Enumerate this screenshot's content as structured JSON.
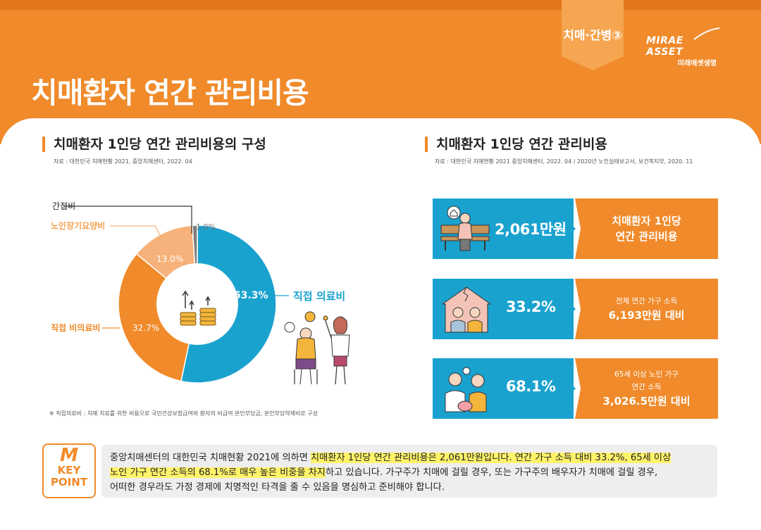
{
  "header": {
    "title": "치매환자 연간 관리비용",
    "tag": "치매·간병③",
    "logo_main": "MIRAE ASSET",
    "logo_sub": "미래에셋생명",
    "colors": {
      "primary": "#f08a2a",
      "blue": "#1aa2cf"
    }
  },
  "left": {
    "title": "치매환자 1인당 연간 관리비용의 구성",
    "source": "자료 : 대한민국 치매현황 2021, 중앙치매센터, 2022. 04",
    "footnote": "※ 직접의료비 : 치매 치료를 위한 비용으로 국민건강보험급여와 환자의 비급여 본인부담금, 본인부담약제비로 구성"
  },
  "chart_data": {
    "type": "pie",
    "title": "치매환자 1인당 연간 관리비용의 구성",
    "slices": [
      {
        "name": "직접 의료비",
        "value": 53.3,
        "label": "53.3%",
        "color": "#1aa2cf"
      },
      {
        "name": "직접 비의료비",
        "value": 32.7,
        "label": "32.7%",
        "color": "#f08a2a"
      },
      {
        "name": "노인장기요양비",
        "value": 13.0,
        "label": "13.0%",
        "color": "#f6b27a"
      },
      {
        "name": "간접비",
        "value": 1.0,
        "label": "1.0%",
        "color": "#7f7f7f"
      }
    ]
  },
  "right": {
    "title": "치매환자 1인당 연간 관리비용",
    "source": "자료 : 대한민국 치매현황 2021 중앙치매센터, 2022. 04 / 2020년 노인실태보고서, 보건복지부, 2020. 11",
    "cards": [
      {
        "value": "2,061만원",
        "line1": "치매환자 1인당",
        "line2": "연간 관리비용",
        "icon": "elderly-on-bench-icon"
      },
      {
        "value": "33.2%",
        "line1": "전체 연간 가구 소득",
        "line2": "6,193만원 대비",
        "icon": "cracked-house-family-icon"
      },
      {
        "value": "68.1%",
        "line1": "65세 이상 노인 가구",
        "line2": "연간 소득",
        "line3": "3,026.5만원 대비",
        "icon": "worried-couple-icon"
      }
    ]
  },
  "keypoint": {
    "badge_top": "KEY",
    "badge_bottom": "POINT",
    "t1": "중앙치매센터의 대한민국 치매현황 2021에 의하면 ",
    "h1": "치매환자 1인당 연간 관리비용은 2,061만원입니다. 연간 가구 소득 대비 33.2%, 65세 이상",
    "h2": "노인 가구 연간 소득의 68.1%로 매우 높은 비중을 차지",
    "t2": "하고 있습니다. 가구주가 치매에 걸릴 경우, 또는 가구주의 배우자가 치매에 걸릴 경우,",
    "t3": "어떠한 경우라도 가정 경제에 치명적인 타격을 줄 수 있음을 명심하고 준비해야 합니다."
  }
}
